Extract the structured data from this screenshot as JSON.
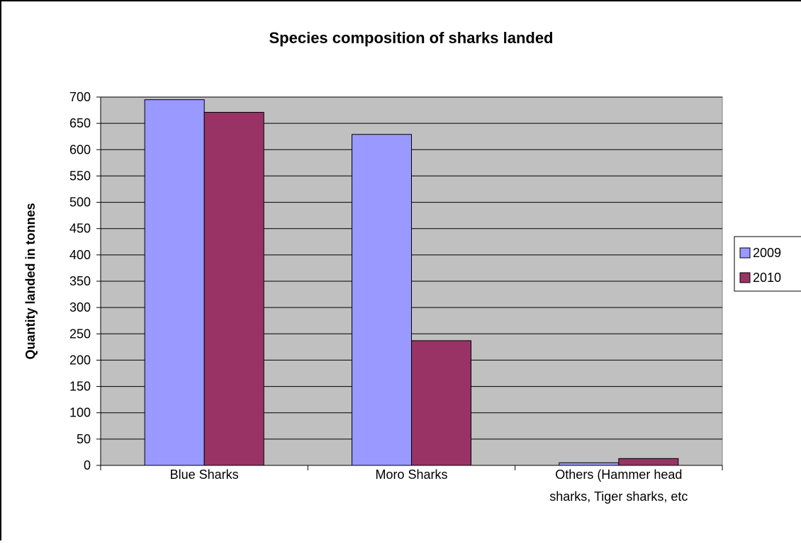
{
  "chart_data": {
    "type": "bar",
    "title": "Species composition of sharks landed",
    "xlabel": "",
    "ylabel": "Quantity landed in tonnes",
    "ylim": [
      0,
      700
    ],
    "y_ticks": [
      "0",
      "50",
      "100",
      "150",
      "200",
      "250",
      "300",
      "350",
      "400",
      "450",
      "500",
      "550",
      "600",
      "650",
      "700"
    ],
    "categories": [
      [
        "Blue Sharks"
      ],
      [
        "Moro Sharks"
      ],
      [
        "Others (Hammer head",
        "sharks, Tiger sharks, etc"
      ]
    ],
    "series": [
      {
        "name": "2009",
        "values": [
          695,
          629,
          5
        ],
        "color": "#9999FF"
      },
      {
        "name": "2010",
        "values": [
          671,
          237,
          13
        ],
        "color": "#993366"
      }
    ],
    "plot_background": "#C0C0C0",
    "grid": true,
    "legend_position": "right"
  }
}
